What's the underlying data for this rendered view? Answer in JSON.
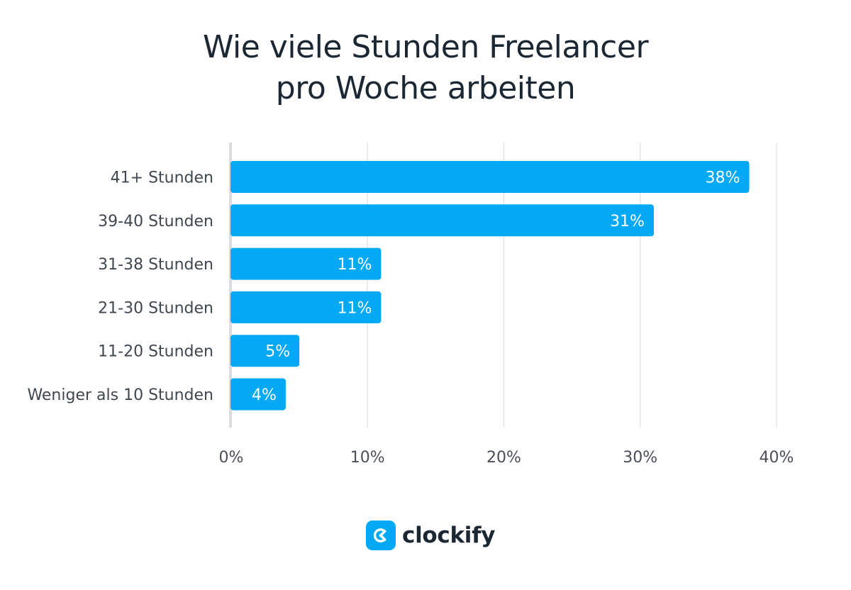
{
  "chart_data": {
    "type": "bar",
    "orientation": "horizontal",
    "title": [
      "Wie viele Stunden Freelancer",
      "pro Woche arbeiten"
    ],
    "categories": [
      "41+ Stunden",
      "39-40 Stunden",
      "31-38 Stunden",
      "21-30 Stunden",
      "11-20 Stunden",
      "Weniger als 10 Stunden"
    ],
    "values": [
      38,
      31,
      11,
      11,
      5,
      4
    ],
    "value_labels": [
      "38%",
      "31%",
      "11%",
      "11%",
      "5%",
      "4%"
    ],
    "x_ticks": [
      0,
      10,
      20,
      30,
      40
    ],
    "x_tick_labels": [
      "0%",
      "10%",
      "20%",
      "30%",
      "40%"
    ],
    "xlim": [
      0,
      40
    ],
    "grid": true,
    "bar_color": "#03a9f4",
    "grid_color": "#e3e5e8",
    "axis_color": "#d9dbde"
  },
  "brand": {
    "name": "clockify",
    "icon": "clockify-logo-icon",
    "color": "#03a9f4"
  }
}
